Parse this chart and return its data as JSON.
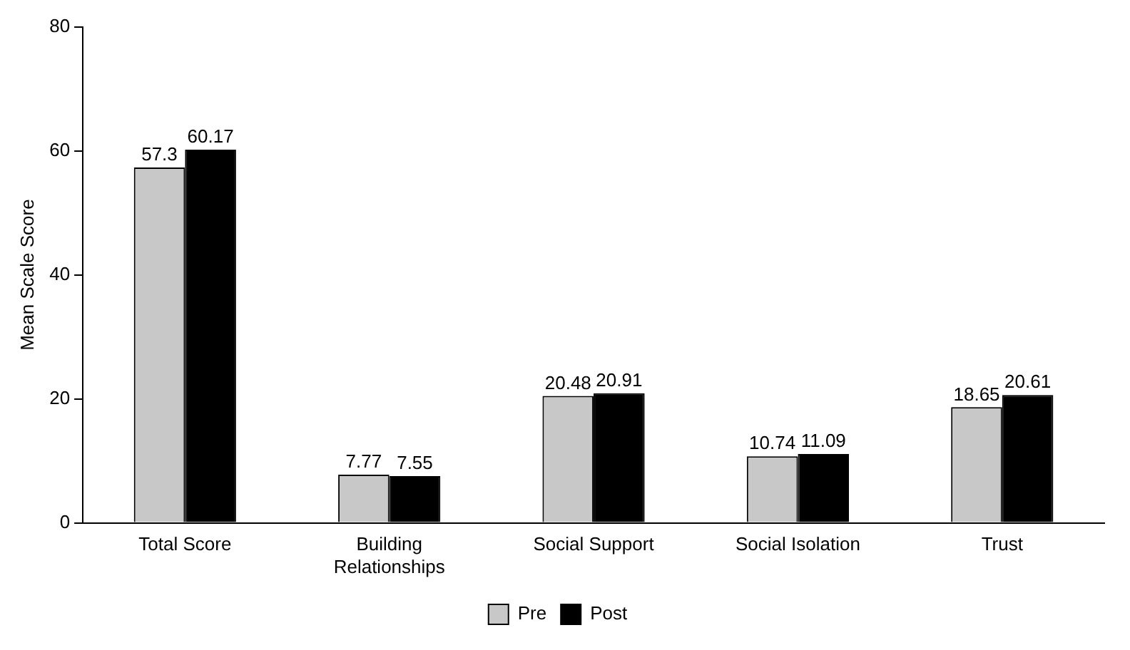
{
  "chart_data": {
    "type": "bar",
    "ylabel": "Mean Scale Score",
    "categories": [
      "Total Score",
      "Building Relationships",
      "Social Support",
      "Social Isolation",
      "Trust"
    ],
    "series": [
      {
        "name": "Pre",
        "color": "#c8c8c8",
        "values": [
          57.3,
          7.77,
          20.48,
          10.74,
          18.65
        ]
      },
      {
        "name": "Post",
        "color": "#000000",
        "values": [
          60.17,
          7.55,
          20.91,
          11.09,
          20.61
        ]
      }
    ],
    "ylim": [
      0,
      80
    ],
    "yticks": [
      0,
      20,
      40,
      60,
      80
    ],
    "grid": false,
    "legend": "bottom",
    "data_labels": true
  }
}
